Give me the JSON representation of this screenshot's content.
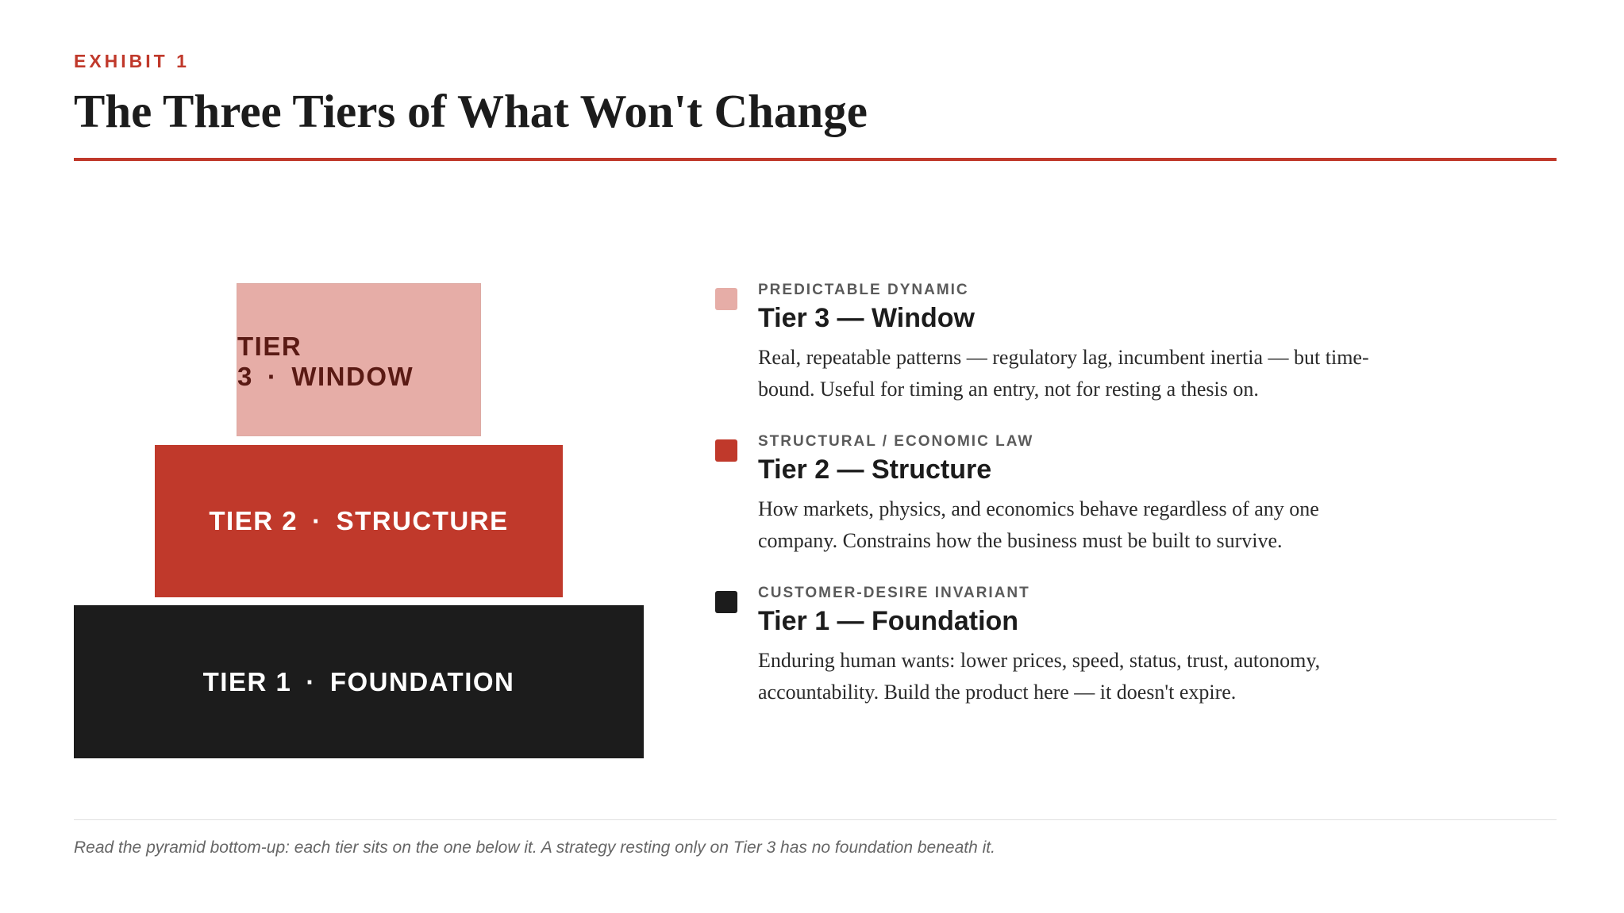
{
  "header": {
    "exhibit_label": "EXHIBIT 1",
    "title": "The Three Tiers of What Won't Change"
  },
  "pyramid": {
    "tier3": {
      "label": "TIER 3",
      "sep": "·",
      "name": "WINDOW",
      "color": "#e6ada7",
      "text_color": "#5a1a14"
    },
    "tier2": {
      "label": "TIER 2",
      "sep": "·",
      "name": "STRUCTURE",
      "color": "#c0392b",
      "text_color": "#ffffff"
    },
    "tier1": {
      "label": "TIER 1",
      "sep": "·",
      "name": "FOUNDATION",
      "color": "#1c1c1c",
      "text_color": "#ffffff"
    }
  },
  "legend": [
    {
      "kicker": "PREDICTABLE DYNAMIC",
      "title": "Tier 3 — Window",
      "description": "Real, repeatable patterns — regulatory lag, incumbent inertia — but time-bound. Useful for timing an entry, not for resting a thesis on.",
      "color": "#e6ada7"
    },
    {
      "kicker": "STRUCTURAL / ECONOMIC LAW",
      "title": "Tier 2 — Structure",
      "description": "How markets, physics, and economics behave regardless of any one company. Constrains how the business must be built to survive.",
      "color": "#c0392b"
    },
    {
      "kicker": "CUSTOMER-DESIRE INVARIANT",
      "title": "Tier 1 — Foundation",
      "description": "Enduring human wants: lower prices, speed, status, trust, autonomy, accountability. Build the product here — it doesn't expire.",
      "color": "#1c1c1c"
    }
  ],
  "footnote": "Read the pyramid bottom-up: each tier sits on the one below it. A strategy resting only on Tier 3 has no foundation beneath it."
}
